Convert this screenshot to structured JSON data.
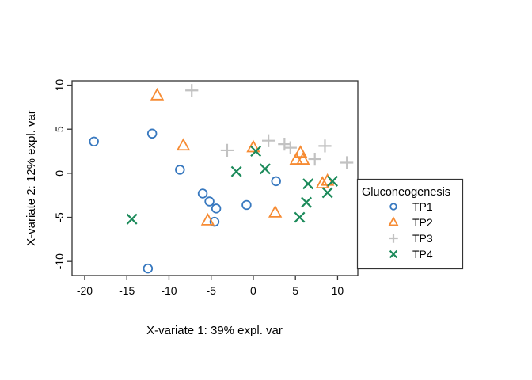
{
  "figure": {
    "background": "#ffffff",
    "frame_color": "#333333",
    "tick_color": "#333333",
    "text_color": "#000000"
  },
  "chart_data": {
    "type": "scatter",
    "title": "",
    "xlabel": "X-variate 1: 39% expl. var",
    "ylabel": "X-variate 2: 12% expl. var",
    "xlim": [
      -21.5,
      12.4
    ],
    "ylim": [
      -11.6,
      10.5
    ],
    "xticks": [
      -20,
      -15,
      -10,
      -5,
      0,
      5,
      10
    ],
    "yticks": [
      -10,
      -5,
      0,
      5,
      10
    ],
    "grid": false,
    "legend": {
      "title": "Gluconeogenesis",
      "position": "right-outside"
    },
    "series": [
      {
        "name": "TP1",
        "marker": "circle",
        "color": "#3778bf",
        "points": [
          [
            -18.9,
            3.6
          ],
          [
            -12.0,
            4.5
          ],
          [
            -8.7,
            0.4
          ],
          [
            -6.0,
            -2.3
          ],
          [
            -5.2,
            -3.2
          ],
          [
            -4.4,
            -4.0
          ],
          [
            -4.6,
            -5.5
          ],
          [
            -12.5,
            -10.8
          ],
          [
            -0.8,
            -3.6
          ],
          [
            2.7,
            -0.9
          ]
        ]
      },
      {
        "name": "TP2",
        "marker": "triangle",
        "color": "#f68b33",
        "points": [
          [
            -11.4,
            8.8
          ],
          [
            -8.3,
            3.1
          ],
          [
            0.0,
            2.9
          ],
          [
            5.6,
            2.3
          ],
          [
            5.1,
            1.5
          ],
          [
            5.9,
            1.5
          ],
          [
            8.2,
            -1.2
          ],
          [
            8.8,
            -0.9
          ],
          [
            2.6,
            -4.5
          ],
          [
            -5.4,
            -5.4
          ]
        ]
      },
      {
        "name": "TP3",
        "marker": "plus",
        "color": "#c2c2c2",
        "points": [
          [
            -7.3,
            9.4
          ],
          [
            -3.1,
            2.6
          ],
          [
            1.8,
            3.7
          ],
          [
            3.7,
            3.3
          ],
          [
            4.4,
            2.9
          ],
          [
            7.3,
            1.6
          ],
          [
            8.5,
            3.1
          ],
          [
            11.1,
            1.2
          ]
        ]
      },
      {
        "name": "TP4",
        "marker": "x",
        "color": "#1b8a5a",
        "points": [
          [
            -2.0,
            0.2
          ],
          [
            0.3,
            2.5
          ],
          [
            1.4,
            0.5
          ],
          [
            6.5,
            -1.2
          ],
          [
            9.4,
            -0.9
          ],
          [
            8.8,
            -2.2
          ],
          [
            6.3,
            -3.3
          ],
          [
            5.5,
            -5.0
          ],
          [
            -14.4,
            -5.2
          ]
        ]
      }
    ]
  }
}
